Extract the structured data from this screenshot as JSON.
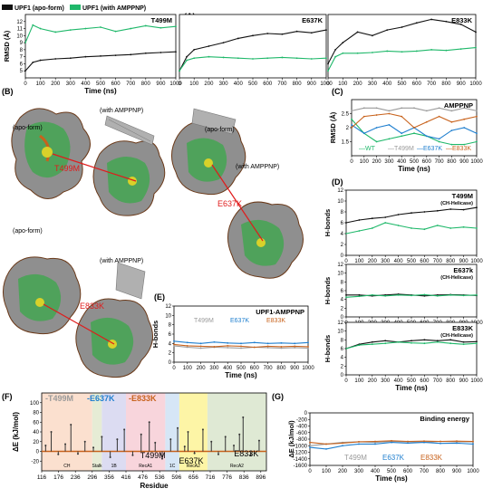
{
  "colors": {
    "apo": "#111111",
    "ampp": "#1fb86a",
    "wt": "#1fb86a",
    "t499m": "#9a9a9a",
    "e637k": "#1f7fcf",
    "e833k": "#c8621c",
    "mutation": "#e01b1b"
  },
  "panel_labels": {
    "a": "(A)",
    "b": "(B)",
    "c": "(C)",
    "d": "(D)",
    "e": "(E)",
    "f": "(F)",
    "g": "(G)"
  },
  "legend_a": {
    "apo": "UPF1 (apo-form)",
    "ampp": "UPF1 (with AMPPNP)"
  },
  "structure_labels": {
    "apo1": "(apo-form)",
    "ampp1": "(with AMPPNP)",
    "mut1": "T499M",
    "apo2": "(apo-form)",
    "ampp2": "(with AMPPNP)",
    "mut2": "E637K",
    "apo3": "(apo-form)",
    "ampp3": "(with AMPPNP)",
    "mut3": "E833K"
  },
  "chart_data": [
    {
      "id": "A1",
      "type": "line",
      "title": "T499M",
      "xlabel": "Time (ns)",
      "ylabel": "RMSD (Å)",
      "xlim": [
        0,
        1000
      ],
      "ylim": [
        4,
        13
      ],
      "xticks": [
        0,
        100,
        200,
        300,
        400,
        500,
        600,
        700,
        800,
        900,
        1000
      ],
      "yticks": [
        5,
        6,
        7,
        8,
        9,
        10,
        11,
        12
      ],
      "series": [
        {
          "name": "UPF1 (apo-form)",
          "color": "#111111",
          "x": [
            0,
            50,
            100,
            200,
            300,
            400,
            500,
            600,
            700,
            800,
            900,
            1000
          ],
          "values": [
            5,
            6.2,
            6.5,
            6.7,
            6.8,
            7.0,
            7.1,
            7.2,
            7.3,
            7.5,
            7.6,
            7.7
          ]
        },
        {
          "name": "UPF1 (with AMPPNP)",
          "color": "#1fb86a",
          "x": [
            0,
            50,
            100,
            200,
            300,
            400,
            500,
            600,
            700,
            800,
            900,
            1000
          ],
          "values": [
            9,
            11.5,
            11,
            10.5,
            10.8,
            11,
            11.2,
            10.6,
            11,
            11.4,
            11.1,
            11.3
          ]
        }
      ]
    },
    {
      "id": "A2",
      "type": "line",
      "title": "E637K",
      "xlim": [
        0,
        1000
      ],
      "ylim": [
        4,
        13
      ],
      "xticks": [
        0,
        100,
        200,
        300,
        400,
        500,
        600,
        700,
        800,
        900,
        1000
      ],
      "series": [
        {
          "name": "UPF1 (apo-form)",
          "color": "#111111",
          "x": [
            0,
            50,
            100,
            200,
            300,
            400,
            500,
            600,
            700,
            800,
            900,
            1000
          ],
          "values": [
            5,
            7,
            8,
            8.5,
            9,
            9.6,
            10,
            10.3,
            10.2,
            10.6,
            10.4,
            10.8
          ]
        },
        {
          "name": "UPF1 (with AMPPNP)",
          "color": "#1fb86a",
          "x": [
            0,
            50,
            100,
            200,
            300,
            400,
            500,
            600,
            700,
            800,
            900,
            1000
          ],
          "values": [
            5,
            6.5,
            6.8,
            7,
            6.9,
            6.8,
            6.7,
            6.8,
            6.9,
            6.8,
            6.7,
            6.8
          ]
        }
      ]
    },
    {
      "id": "A3",
      "type": "line",
      "title": "E833K",
      "xlim": [
        0,
        1000
      ],
      "ylim": [
        4,
        13
      ],
      "xticks": [
        0,
        100,
        200,
        300,
        400,
        500,
        600,
        700,
        800,
        900,
        1000
      ],
      "series": [
        {
          "name": "UPF1 (apo-form)",
          "color": "#111111",
          "x": [
            0,
            50,
            100,
            200,
            300,
            400,
            500,
            600,
            700,
            800,
            900,
            1000
          ],
          "values": [
            6,
            8,
            9,
            10.5,
            10,
            10.8,
            11.2,
            11.8,
            12.3,
            12,
            11.6,
            10.5
          ]
        },
        {
          "name": "UPF1 (with AMPPNP)",
          "color": "#1fb86a",
          "x": [
            0,
            50,
            100,
            200,
            300,
            400,
            500,
            600,
            700,
            800,
            900,
            1000
          ],
          "values": [
            5,
            7,
            7.5,
            7.5,
            7.6,
            7.8,
            7.7,
            7.8,
            8.0,
            7.9,
            8.1,
            8.3
          ]
        }
      ]
    },
    {
      "id": "C",
      "type": "line",
      "title": "AMPPNP",
      "xlabel": "Time (ns)",
      "ylabel": "RMSD (Å)",
      "xlim": [
        0,
        1000
      ],
      "ylim": [
        1,
        3
      ],
      "xticks": [
        0,
        100,
        200,
        300,
        400,
        500,
        600,
        700,
        800,
        900,
        1000
      ],
      "yticks": [
        1.5,
        2,
        2.5
      ],
      "legend": [
        "WT",
        "T499M",
        "E637K",
        "E833K"
      ],
      "series": [
        {
          "name": "WT",
          "color": "#1fb86a",
          "x": [
            0,
            100,
            200,
            300,
            400,
            500,
            600,
            700,
            800,
            900,
            1000
          ],
          "values": [
            2.3,
            1.8,
            1.5,
            1.6,
            1.7,
            1.8,
            1.7,
            1.5,
            1.4,
            1.4,
            1.5
          ]
        },
        {
          "name": "T499M",
          "color": "#9a9a9a",
          "x": [
            0,
            100,
            200,
            300,
            400,
            500,
            600,
            700,
            800,
            900,
            1000
          ],
          "values": [
            2.6,
            2.7,
            2.7,
            2.6,
            2.7,
            2.7,
            2.6,
            2.7,
            2.6,
            2.7,
            2.6
          ]
        },
        {
          "name": "E637K",
          "color": "#1f7fcf",
          "x": [
            0,
            100,
            200,
            300,
            400,
            500,
            600,
            700,
            800,
            900,
            1000
          ],
          "values": [
            2.1,
            1.8,
            2.0,
            2.1,
            1.8,
            2.0,
            1.7,
            1.6,
            1.9,
            2.0,
            1.8
          ]
        },
        {
          "name": "E833K",
          "color": "#c8621c",
          "x": [
            0,
            100,
            200,
            300,
            400,
            500,
            600,
            700,
            800,
            900,
            1000
          ],
          "values": [
            2.0,
            2.4,
            2.45,
            2.5,
            2.4,
            2.0,
            2.2,
            2.4,
            2.2,
            2.3,
            2.4
          ]
        }
      ]
    },
    {
      "id": "D1",
      "type": "line",
      "title": "T499M",
      "subtitle": "(CH-Helicase)",
      "ylabel": "H-bonds",
      "xlim": [
        0,
        1000
      ],
      "ylim": [
        0,
        12
      ],
      "xticks": [
        0,
        100,
        200,
        300,
        400,
        500,
        600,
        700,
        800,
        900,
        1000
      ],
      "yticks": [
        0,
        2,
        4,
        6,
        8,
        10,
        12
      ],
      "series": [
        {
          "name": "UPF1 (apo-form)",
          "color": "#111111",
          "x": [
            0,
            100,
            200,
            300,
            400,
            500,
            600,
            700,
            800,
            900,
            1000
          ],
          "values": [
            6,
            6.5,
            6.8,
            7,
            7.5,
            7.8,
            8,
            8.2,
            8.5,
            8.4,
            8.8
          ]
        },
        {
          "name": "UPF1 (with AMPPNP)",
          "color": "#1fb86a",
          "x": [
            0,
            100,
            200,
            300,
            400,
            500,
            600,
            700,
            800,
            900,
            1000
          ],
          "values": [
            4,
            4.5,
            5,
            6,
            5.5,
            5,
            4.8,
            5.5,
            5,
            5.2,
            5
          ]
        }
      ]
    },
    {
      "id": "D2",
      "type": "line",
      "title": "E637k",
      "subtitle": "(CH-Helicase)",
      "ylabel": "H-bonds",
      "xlim": [
        0,
        1000
      ],
      "ylim": [
        0,
        12
      ],
      "xticks": [
        0,
        100,
        200,
        300,
        400,
        500,
        600,
        700,
        800,
        900,
        1000
      ],
      "yticks": [
        0,
        2,
        4,
        6,
        8,
        10,
        12
      ],
      "series": [
        {
          "name": "UPF1 (apo-form)",
          "color": "#111111",
          "x": [
            0,
            100,
            200,
            300,
            400,
            500,
            600,
            700,
            800,
            900,
            1000
          ],
          "values": [
            5,
            5,
            4.8,
            5,
            5.2,
            5,
            4.8,
            5,
            5.1,
            5,
            4.9
          ]
        },
        {
          "name": "UPF1 (with AMPPNP)",
          "color": "#1fb86a",
          "x": [
            0,
            100,
            200,
            300,
            400,
            500,
            600,
            700,
            800,
            900,
            1000
          ],
          "values": [
            4.5,
            4.7,
            5,
            4.8,
            5,
            4.9,
            5.1,
            4.8,
            5,
            4.9,
            5
          ]
        }
      ]
    },
    {
      "id": "D3",
      "type": "line",
      "title": "E833K",
      "subtitle": "(CH-Helicase)",
      "xlabel": "Time (ns)",
      "ylabel": "H-bonds",
      "xlim": [
        0,
        1000
      ],
      "ylim": [
        0,
        12
      ],
      "xticks": [
        0,
        100,
        200,
        300,
        400,
        500,
        600,
        700,
        800,
        900,
        1000
      ],
      "yticks": [
        0,
        2,
        4,
        6,
        8,
        10,
        12
      ],
      "series": [
        {
          "name": "UPF1 (apo-form)",
          "color": "#111111",
          "x": [
            0,
            100,
            200,
            300,
            400,
            500,
            600,
            700,
            800,
            900,
            1000
          ],
          "values": [
            6,
            7,
            7.5,
            7.8,
            7.5,
            7.8,
            8,
            7.8,
            8,
            7.5,
            7.6
          ]
        },
        {
          "name": "UPF1 (with AMPPNP)",
          "color": "#1fb86a",
          "x": [
            0,
            100,
            200,
            300,
            400,
            500,
            600,
            700,
            800,
            900,
            1000
          ],
          "values": [
            6,
            6.8,
            7,
            7.2,
            7.5,
            7.3,
            7.2,
            7.5,
            7.2,
            7,
            7.2
          ]
        }
      ]
    },
    {
      "id": "E",
      "type": "line",
      "title": "UPF1-AMPPNP",
      "xlabel": "Time (ns)",
      "ylabel": "H-bonds",
      "xlim": [
        0,
        1000
      ],
      "ylim": [
        0,
        12
      ],
      "xticks": [
        0,
        100,
        200,
        300,
        400,
        500,
        600,
        700,
        800,
        900,
        1000
      ],
      "yticks": [
        0,
        2,
        4,
        6,
        8,
        10,
        12
      ],
      "legend": [
        "T499M",
        "E637K",
        "E833K"
      ],
      "series": [
        {
          "name": "T499M",
          "color": "#9a9a9a",
          "x": [
            0,
            100,
            200,
            300,
            400,
            500,
            600,
            700,
            800,
            900,
            1000
          ],
          "values": [
            3.5,
            3.2,
            3,
            3.2,
            3.1,
            3,
            3.2,
            3.1,
            3,
            3.1,
            3
          ]
        },
        {
          "name": "E637K",
          "color": "#1f7fcf",
          "x": [
            0,
            100,
            200,
            300,
            400,
            500,
            600,
            700,
            800,
            900,
            1000
          ],
          "values": [
            4.5,
            4.2,
            4,
            4.3,
            4.1,
            4,
            4.2,
            4,
            4.1,
            4,
            4.2
          ]
        },
        {
          "name": "E833K",
          "color": "#c8621c",
          "x": [
            0,
            100,
            200,
            300,
            400,
            500,
            600,
            700,
            800,
            900,
            1000
          ],
          "values": [
            3.8,
            3.5,
            3.4,
            3.3,
            3.5,
            3.4,
            3.2,
            3.4,
            3.3,
            3.4,
            3.3
          ]
        }
      ]
    },
    {
      "id": "F",
      "type": "bar",
      "xlabel": "Residue",
      "ylabel": "ΔE (kJ/mol)",
      "xlim": [
        116,
        916
      ],
      "ylim": [
        -40,
        120
      ],
      "xticks": [
        116,
        176,
        236,
        296,
        356,
        416,
        476,
        536,
        596,
        656,
        716,
        776,
        836,
        896
      ],
      "yticks": [
        -20,
        0,
        20,
        40,
        60,
        80,
        100
      ],
      "legend": [
        "T499M",
        "E637K",
        "E833K"
      ],
      "domains": [
        {
          "name": "CH",
          "start": 116,
          "end": 296,
          "color": "#fbe0cf"
        },
        {
          "name": "Stalk",
          "start": 296,
          "end": 330,
          "color": "#e6ecd5"
        },
        {
          "name": "1B",
          "start": 330,
          "end": 416,
          "color": "#dcdcf2"
        },
        {
          "name": "RecA1",
          "start": 416,
          "end": 556,
          "color": "#f8d5dc"
        },
        {
          "name": "1C",
          "start": 556,
          "end": 606,
          "color": "#d6e6f6"
        },
        {
          "name": "RecA2",
          "start": 606,
          "end": 706,
          "color": "#fdf5a6"
        },
        {
          "name": "RecA2",
          "start": 706,
          "end": 916,
          "color": "#dfe9d4"
        }
      ],
      "annotations": [
        "T499M",
        "E637K",
        "E833K"
      ],
      "residues": [
        130,
        150,
        175,
        200,
        220,
        245,
        270,
        300,
        330,
        360,
        385,
        410,
        440,
        470,
        499,
        520,
        545,
        575,
        600,
        625,
        637,
        660,
        690,
        720,
        745,
        770,
        800,
        820,
        833,
        860,
        890
      ],
      "values": [
        12,
        40,
        -6,
        15,
        55,
        -5,
        20,
        8,
        30,
        -12,
        25,
        45,
        -8,
        35,
        60,
        18,
        -15,
        25,
        48,
        10,
        40,
        -4,
        45,
        20,
        -6,
        30,
        12,
        35,
        70,
        -8,
        22
      ]
    },
    {
      "id": "G",
      "type": "line",
      "title": "Binding energy",
      "xlabel": "Time (ns)",
      "ylabel": "ΔE (kJ/mol)",
      "xlim": [
        0,
        1000
      ],
      "ylim": [
        -1600,
        0
      ],
      "xticks": [
        0,
        100,
        200,
        300,
        400,
        500,
        600,
        700,
        800,
        900,
        1000
      ],
      "yticks": [
        -1600,
        -1400,
        -1200,
        -1000,
        -800,
        -600,
        -400,
        -200,
        0
      ],
      "legend": [
        "T499M",
        "E637K",
        "E833K"
      ],
      "series": [
        {
          "name": "T499M",
          "color": "#9a9a9a",
          "x": [
            0,
            100,
            200,
            300,
            400,
            500,
            600,
            700,
            800,
            900,
            1000
          ],
          "values": [
            -1000,
            -950,
            -900,
            -880,
            -900,
            -870,
            -880,
            -900,
            -870,
            -880,
            -880
          ]
        },
        {
          "name": "E637K",
          "color": "#1f7fcf",
          "x": [
            0,
            100,
            200,
            300,
            400,
            500,
            600,
            700,
            800,
            900,
            1000
          ],
          "values": [
            -1050,
            -1100,
            -1000,
            -950,
            -950,
            -900,
            -920,
            -900,
            -930,
            -920,
            -950
          ]
        },
        {
          "name": "E833K",
          "color": "#c8621c",
          "x": [
            0,
            100,
            200,
            300,
            400,
            500,
            600,
            700,
            800,
            900,
            1000
          ],
          "values": [
            -900,
            -950,
            -920,
            -880,
            -870,
            -850,
            -870,
            -860,
            -870,
            -860,
            -870
          ]
        }
      ]
    }
  ]
}
